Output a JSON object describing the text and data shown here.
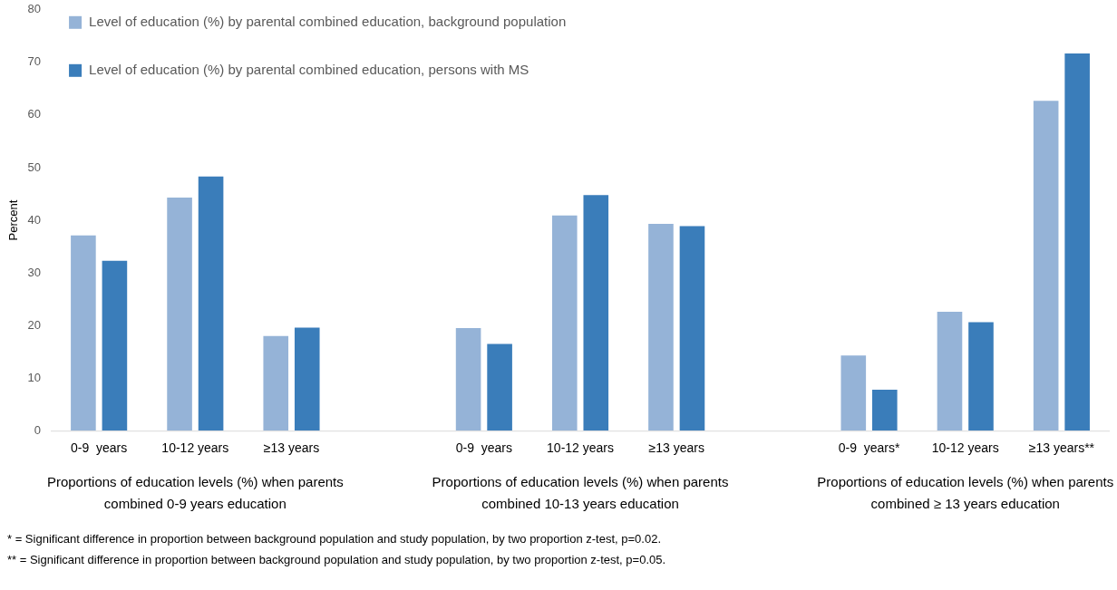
{
  "chart_data": {
    "type": "bar",
    "ylabel": "Percent",
    "categories": [
      "0-9  years",
      "10-12 years",
      "≥13 years",
      null,
      "0-9  years",
      "10-12 years",
      "≥13 years",
      null,
      "0-9  years*",
      "10-12 years",
      "≥13 years**"
    ],
    "series": [
      {
        "name": "Level of education (%) by parental combined education, background population",
        "color": "#95b3d7",
        "values": [
          37.1,
          44.3,
          18.0,
          null,
          19.5,
          40.9,
          39.3,
          null,
          14.3,
          22.6,
          62.7
        ]
      },
      {
        "name": "Level of education (%) by parental combined education, persons with MS",
        "color": "#3a7dba",
        "values": [
          32.3,
          48.3,
          19.6,
          null,
          16.5,
          44.8,
          38.9,
          null,
          7.8,
          20.6,
          71.7
        ]
      }
    ],
    "ylim": [
      0,
      80
    ],
    "yticks": [
      0,
      10,
      20,
      30,
      40,
      50,
      60,
      70,
      80
    ],
    "grid": false,
    "legend": "top left",
    "annotations": [
      "Proportions of education levels (%) when parents combined 0-9 years education",
      "Proportions of education levels (%) when parents combined 10-13 years education",
      "Proportions of education levels (%) when parents combined ≥ 13 years education",
      "* = Significant difference in proportion between background population and study population, by two proportion z-test, p=0.02.",
      "** = Significant difference in proportion between background population and study population, by two proportion z-test, p=0.05."
    ]
  }
}
